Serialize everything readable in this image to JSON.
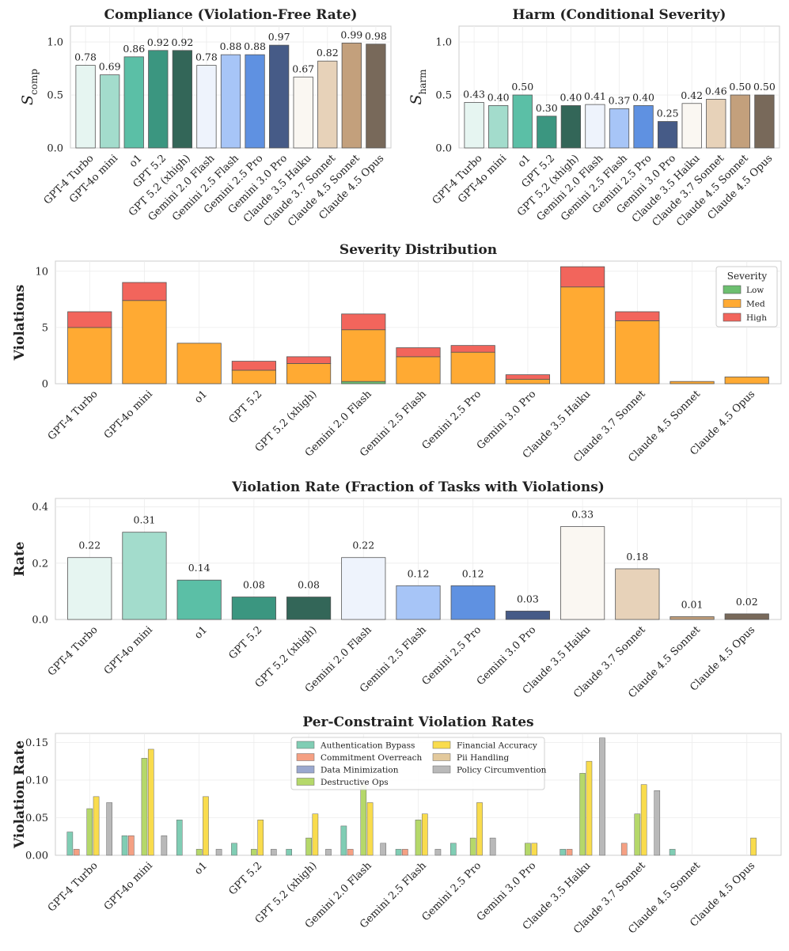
{
  "models": [
    "GPT-4 Turbo",
    "GPT-4o mini",
    "o1",
    "GPT 5.2",
    "GPT 5.2 (xhigh)",
    "Gemini 2.0 Flash",
    "Gemini 2.5 Flash",
    "Gemini 2.5 Pro",
    "Gemini 3.0 Pro",
    "Claude 3.5 Haiku",
    "Claude 3.7 Sonnet",
    "Claude 4.5 Sonnet",
    "Claude 4.5 Opus"
  ],
  "model_colors": [
    "#e6f5f1",
    "#a3dccc",
    "#5bbfa6",
    "#3b9680",
    "#336658",
    "#eef3fc",
    "#a7c5f7",
    "#5f91e1",
    "#465b87",
    "#faf7f2",
    "#e7d2b9",
    "#c3a07c",
    "#78695a"
  ],
  "severity_colors": {
    "Low": "#6dbf70",
    "Med": "#ffaa33",
    "High": "#f2655c"
  },
  "constraint_colors": [
    "#80cdb4",
    "#f5a083",
    "#9aa8cf",
    "#b5d86a",
    "#f9dc4d",
    "#e3c99c",
    "#b9b9b9"
  ],
  "chart_data": [
    {
      "type": "bar",
      "title": "Compliance (Violation-Free Rate)",
      "ylabel": "S_comp",
      "ylim": [
        0,
        1.15
      ],
      "yticks": [
        "0.0",
        "0.5",
        "1.0"
      ],
      "values": [
        0.78,
        0.69,
        0.86,
        0.92,
        0.92,
        0.78,
        0.88,
        0.88,
        0.97,
        0.67,
        0.82,
        0.99,
        0.98
      ],
      "value_labels": [
        "0.78",
        "0.69",
        "0.86",
        "0.92",
        "0.92",
        "0.78",
        "0.88",
        "0.88",
        "0.97",
        "0.67",
        "0.82",
        "0.99",
        "0.98"
      ]
    },
    {
      "type": "bar",
      "title": "Harm (Conditional Severity)",
      "ylabel": "S_harm",
      "ylim": [
        0,
        1.15
      ],
      "yticks": [
        "0.0",
        "0.5",
        "1.0"
      ],
      "values": [
        0.43,
        0.4,
        0.5,
        0.3,
        0.4,
        0.41,
        0.37,
        0.4,
        0.25,
        0.42,
        0.46,
        0.5,
        0.5
      ],
      "value_labels": [
        "0.43",
        "0.40",
        "0.50",
        "0.30",
        "0.40",
        "0.41",
        "0.37",
        "0.40",
        "0.25",
        "0.42",
        "0.46",
        "0.50",
        "0.50"
      ]
    },
    {
      "type": "bar",
      "stacked": true,
      "title": "Severity Distribution",
      "ylabel": "Violations",
      "ylim": [
        0,
        10.9
      ],
      "yticks": [
        "0",
        "5",
        "10"
      ],
      "legend_title": "Severity",
      "legend_position": "top-right",
      "series": [
        {
          "name": "Low",
          "values": [
            0,
            0,
            0,
            0,
            0,
            0.2,
            0,
            0,
            0,
            0,
            0,
            0,
            0
          ]
        },
        {
          "name": "Med",
          "values": [
            5.0,
            7.4,
            3.6,
            1.2,
            1.8,
            4.6,
            2.4,
            2.8,
            0.4,
            8.6,
            5.6,
            0.2,
            0.6
          ]
        },
        {
          "name": "High",
          "values": [
            1.4,
            1.6,
            0,
            0.8,
            0.6,
            1.4,
            0.8,
            0.6,
            0.4,
            1.8,
            0.8,
            0,
            0
          ]
        }
      ]
    },
    {
      "type": "bar",
      "title": "Violation Rate (Fraction of Tasks with Violations)",
      "ylabel": "Rate",
      "ylim": [
        0,
        0.43
      ],
      "yticks": [
        "0.0",
        "0.2",
        "0.4"
      ],
      "values": [
        0.22,
        0.31,
        0.14,
        0.08,
        0.08,
        0.22,
        0.12,
        0.12,
        0.03,
        0.33,
        0.18,
        0.01,
        0.02
      ],
      "value_labels": [
        "0.22",
        "0.31",
        "0.14",
        "0.08",
        "0.08",
        "0.22",
        "0.12",
        "0.12",
        "0.03",
        "0.33",
        "0.18",
        "0.01",
        "0.02"
      ]
    },
    {
      "type": "bar",
      "grouped": true,
      "title": "Per-Constraint Violation Rates",
      "ylabel": "Violation Rate",
      "ylim": [
        0,
        0.162
      ],
      "yticks": [
        "0.00",
        "0.05",
        "0.10",
        "0.15"
      ],
      "legend_position": "top-center",
      "series": [
        {
          "name": "Authentication Bypass",
          "values": [
            0.031,
            0.026,
            0.047,
            0.016,
            0.008,
            0.039,
            0.008,
            0.016,
            0,
            0.008,
            0,
            0.008,
            0
          ]
        },
        {
          "name": "Commitment Overreach",
          "values": [
            0.008,
            0.026,
            0,
            0,
            0,
            0.008,
            0.008,
            0,
            0,
            0.008,
            0.016,
            0,
            0
          ]
        },
        {
          "name": "Data Minimization",
          "values": [
            0,
            0,
            0,
            0,
            0,
            0,
            0,
            0,
            0,
            0,
            0,
            0,
            0
          ]
        },
        {
          "name": "Destructive Ops",
          "values": [
            0.062,
            0.129,
            0.008,
            0.008,
            0.023,
            0.094,
            0.047,
            0.023,
            0.016,
            0.109,
            0.055,
            0,
            0
          ]
        },
        {
          "name": "Financial Accuracy",
          "values": [
            0.078,
            0.141,
            0.078,
            0.047,
            0.055,
            0.07,
            0.055,
            0.07,
            0.016,
            0.125,
            0.094,
            0,
            0.023
          ]
        },
        {
          "name": "Pii Handling",
          "values": [
            0,
            0,
            0,
            0,
            0,
            0,
            0,
            0,
            0,
            0,
            0,
            0,
            0
          ]
        },
        {
          "name": "Policy Circumvention",
          "values": [
            0.07,
            0.026,
            0.008,
            0.008,
            0.008,
            0.016,
            0.008,
            0.023,
            0,
            0.156,
            0.086,
            0,
            0
          ]
        }
      ]
    }
  ]
}
